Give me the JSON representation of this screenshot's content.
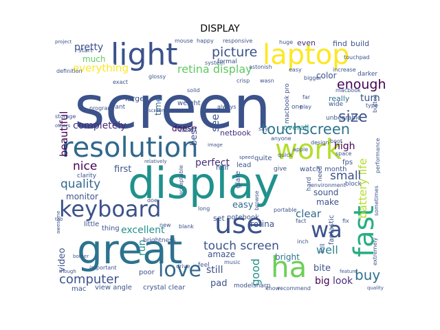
{
  "title": "DISPLAY",
  "words": [
    {
      "text": "screen",
      "color": "#3b528b"
    },
    {
      "text": "display",
      "color": "#21918c"
    },
    {
      "text": "great",
      "color": "#2c728e"
    },
    {
      "text": "resolution",
      "color": "#31688e"
    },
    {
      "text": "light",
      "color": "#3b528b"
    },
    {
      "text": "laptop",
      "color": "#fde725"
    },
    {
      "text": "keyboard",
      "color": "#3b528b"
    },
    {
      "text": "work",
      "color": "#b5de2b"
    },
    {
      "text": "use",
      "color": "#3b528b"
    },
    {
      "text": "fast",
      "color": "#28ae80"
    },
    {
      "text": "love",
      "color": "#31688e"
    },
    {
      "text": "wa",
      "color": "#3b528b"
    },
    {
      "text": "ha",
      "color": "#6ece58"
    },
    {
      "text": "touchscreen",
      "color": "#2c728e"
    },
    {
      "text": "picture",
      "color": "#3b528b"
    },
    {
      "text": "retina display",
      "color": "#5ec962"
    },
    {
      "text": "enough",
      "color": "#440154"
    },
    {
      "text": "size",
      "color": "#3b528b"
    },
    {
      "text": "quality",
      "color": "#31688e"
    },
    {
      "text": "nice",
      "color": "#440154"
    },
    {
      "text": "computer",
      "color": "#3b528b"
    },
    {
      "text": "touch screen",
      "color": "#3b528b"
    },
    {
      "text": "battery life",
      "color": "#b5de2b"
    },
    {
      "text": "buy",
      "color": "#2c728e"
    },
    {
      "text": "clear",
      "color": "#31688e"
    },
    {
      "text": "well",
      "color": "#26828e"
    },
    {
      "text": "good",
      "color": "#21918c"
    },
    {
      "text": "beautiful",
      "color": "#440154"
    },
    {
      "text": "everything",
      "color": "#fde725"
    },
    {
      "text": "pretty",
      "color": "#3b528b"
    },
    {
      "text": "much",
      "color": "#5ec962"
    },
    {
      "text": "completely",
      "color": "#472d7b"
    },
    {
      "text": "excellent",
      "color": "#21918c"
    },
    {
      "text": "monitor",
      "color": "#3b528b"
    },
    {
      "text": "small",
      "color": "#3b528b"
    },
    {
      "text": "overall",
      "color": "#21918c"
    },
    {
      "text": "high",
      "color": "#440154"
    },
    {
      "text": "perfect",
      "color": "#472d7b"
    },
    {
      "text": "first",
      "color": "#3b528b"
    },
    {
      "text": "easy",
      "color": "#31688e"
    },
    {
      "text": "still",
      "color": "#3b528b"
    },
    {
      "text": "amaze",
      "color": "#3b528b"
    },
    {
      "text": "bright",
      "color": "#2c728e"
    },
    {
      "text": "bite",
      "color": "#3b528b"
    },
    {
      "text": "big",
      "color": "#440154"
    },
    {
      "text": "look",
      "color": "#472d7b"
    },
    {
      "text": "pad",
      "color": "#3b528b"
    },
    {
      "text": "video",
      "color": "#3b528b"
    },
    {
      "text": "run",
      "color": "#21918c"
    },
    {
      "text": "time",
      "color": "#31688e"
    },
    {
      "text": "doesn",
      "color": "#440154"
    },
    {
      "text": "make",
      "color": "#3b528b"
    },
    {
      "text": "sound",
      "color": "#3b528b"
    },
    {
      "text": "color",
      "color": "#3b528b"
    },
    {
      "text": "turn",
      "color": "#3b528b"
    },
    {
      "text": "really",
      "color": "#2c728e"
    },
    {
      "text": "see",
      "color": "#3b528b"
    },
    {
      "text": "best",
      "color": "#3b528b"
    },
    {
      "text": "netbook",
      "color": "#472d7b"
    },
    {
      "text": "retina",
      "color": "#3b528b"
    },
    {
      "text": "crystal clear",
      "color": "#3b528b"
    },
    {
      "text": "view angle",
      "color": "#3b528b"
    },
    {
      "text": "mac",
      "color": "#3b528b"
    },
    {
      "text": "even",
      "color": "#472d7b"
    },
    {
      "text": "find",
      "color": "#3b528b"
    },
    {
      "text": "build",
      "color": "#3b528b"
    },
    {
      "text": "fps",
      "color": "#3b528b"
    },
    {
      "text": "month",
      "color": "#3b528b"
    },
    {
      "text": "watch",
      "color": "#3b528b"
    },
    {
      "text": "fantastic",
      "color": "#3b528b"
    },
    {
      "text": "notebook",
      "color": "#3b528b"
    },
    {
      "text": "set",
      "color": "#3b528b"
    },
    {
      "text": "little",
      "color": "#3b528b"
    },
    {
      "text": "thing",
      "color": "#3b528b"
    },
    {
      "text": "poor",
      "color": "#3b528b"
    },
    {
      "text": "model",
      "color": "#3b528b"
    },
    {
      "text": "sharp",
      "color": "#3b528b"
    },
    {
      "text": "know",
      "color": "#3b528b"
    },
    {
      "text": "recommend",
      "color": "#3b528b"
    },
    {
      "text": "glare",
      "color": "#3b528b"
    },
    {
      "text": "half",
      "color": "#3b528b"
    },
    {
      "text": "lead",
      "color": "#3b528b"
    },
    {
      "text": "quite",
      "color": "#3b528b"
    },
    {
      "text": "clarity",
      "color": "#3b528b"
    },
    {
      "text": "brightness",
      "color": "#3b528b"
    },
    {
      "text": "large",
      "color": "#3b528b"
    },
    {
      "text": "weight",
      "color": "#3b528b"
    },
    {
      "text": "want",
      "color": "#3b528b"
    },
    {
      "text": "start",
      "color": "#3b528b"
    },
    {
      "text": "mouse",
      "color": "#3b528b"
    },
    {
      "text": "happy",
      "color": "#3b528b"
    },
    {
      "text": "responsive",
      "color": "#3b528b"
    },
    {
      "text": "huge",
      "color": "#3b528b"
    },
    {
      "text": "formal",
      "color": "#3b528b"
    },
    {
      "text": "system",
      "color": "#3b528b"
    },
    {
      "text": "crisp",
      "color": "#3b528b"
    },
    {
      "text": "wasn",
      "color": "#3b528b"
    },
    {
      "text": "macbook pro",
      "color": "#3b528b"
    },
    {
      "text": "easy",
      "color": "#3b528b"
    },
    {
      "text": "increase",
      "color": "#3b528b"
    },
    {
      "text": "darker",
      "color": "#3b528b"
    },
    {
      "text": "macbook",
      "color": "#3b528b"
    },
    {
      "text": "wide",
      "color": "#3b528b"
    },
    {
      "text": "unbearable",
      "color": "#3b528b"
    },
    {
      "text": "type",
      "color": "#3b528b"
    },
    {
      "text": "button",
      "color": "#3b528b"
    },
    {
      "text": "space",
      "color": "#3b528b"
    },
    {
      "text": "performance",
      "color": "#3b528b"
    },
    {
      "text": "boot",
      "color": "#3b528b"
    },
    {
      "text": "apple",
      "color": "#3b528b"
    },
    {
      "text": "quick",
      "color": "#3b528b"
    },
    {
      "text": "anyone",
      "color": "#3b528b"
    },
    {
      "text": "environment",
      "color": "#3b528b"
    },
    {
      "text": "block",
      "color": "#3b528b"
    },
    {
      "text": "sometimes",
      "color": "#3b528b"
    },
    {
      "text": "hard",
      "color": "#3b528b"
    },
    {
      "text": "need",
      "color": "#3b528b"
    },
    {
      "text": "give",
      "color": "#3b528b"
    },
    {
      "text": "browse",
      "color": "#3b528b"
    },
    {
      "text": "portable",
      "color": "#3b528b"
    },
    {
      "text": "fact",
      "color": "#3b528b"
    },
    {
      "text": "inch",
      "color": "#3b528b"
    },
    {
      "text": "full",
      "color": "#3b528b"
    },
    {
      "text": "fix",
      "color": "#3b528b"
    },
    {
      "text": "new",
      "color": "#3b528b"
    },
    {
      "text": "blank",
      "color": "#3b528b"
    },
    {
      "text": "long",
      "color": "#3b528b"
    },
    {
      "text": "drive",
      "color": "#3b528b"
    },
    {
      "text": "feel",
      "color": "#3b528b"
    },
    {
      "text": "music",
      "color": "#3b528b"
    },
    {
      "text": "important",
      "color": "#3b528b"
    },
    {
      "text": "definition",
      "color": "#3b528b"
    },
    {
      "text": "exact",
      "color": "#3b528b"
    },
    {
      "text": "glossy",
      "color": "#3b528b"
    },
    {
      "text": "program",
      "color": "#3b528b"
    },
    {
      "text": "storage",
      "color": "#3b528b"
    },
    {
      "text": "others",
      "color": "#3b528b"
    },
    {
      "text": "image",
      "color": "#3b528b"
    },
    {
      "text": "acceptable",
      "color": "#3b528b"
    },
    {
      "text": "relatively",
      "color": "#3b528b"
    },
    {
      "text": "speed",
      "color": "#3b528b"
    },
    {
      "text": "cable",
      "color": "#3b528b"
    },
    {
      "text": "solid",
      "color": "#3b528b"
    },
    {
      "text": "always",
      "color": "#3b528b"
    },
    {
      "text": "play",
      "color": "#3b528b"
    },
    {
      "text": "one",
      "color": "#3b528b"
    },
    {
      "text": "touchpad",
      "color": "#3b528b"
    },
    {
      "text": "bother",
      "color": "#3b528b"
    },
    {
      "text": "though",
      "color": "#3b528b"
    },
    {
      "text": "extremely",
      "color": "#3b528b"
    },
    {
      "text": "quality",
      "color": "#3b528b"
    },
    {
      "text": "feature",
      "color": "#3b528b"
    },
    {
      "text": "astonish",
      "color": "#3b528b"
    },
    {
      "text": "bigger",
      "color": "#3b528b"
    },
    {
      "text": "design",
      "color": "#3b528b"
    },
    {
      "text": "say",
      "color": "#3b528b"
    },
    {
      "text": "far",
      "color": "#3b528b"
    },
    {
      "text": "awesome",
      "color": "#3b528b"
    },
    {
      "text": "screen",
      "color": "#3b528b"
    },
    {
      "text": "project",
      "color": "#3b528b"
    },
    {
      "text": "doe",
      "color": "#3b528b"
    },
    {
      "text": "tab",
      "color": "#3b528b"
    }
  ]
}
